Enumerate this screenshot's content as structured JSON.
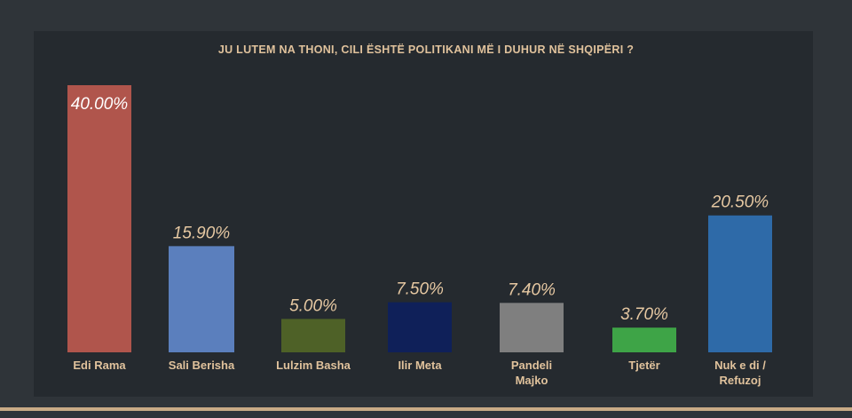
{
  "chart_data": {
    "type": "bar",
    "title": "JU LUTEM NA THONI, CILI ËSHTË POLITIKANI MË I DUHUR NË SHQIPËRI ?",
    "categories": [
      "Edi Rama",
      "Sali Berisha",
      "Lulzim Basha",
      "Ilir Meta",
      "Pandeli Majko",
      "Tjetër",
      "Nuk e di / Refuzoj"
    ],
    "category_lines": [
      [
        "Edi Rama"
      ],
      [
        "Sali Berisha"
      ],
      [
        "Lulzim Basha"
      ],
      [
        "Ilir Meta"
      ],
      [
        "Pandeli",
        "Majko"
      ],
      [
        "Tjetër"
      ],
      [
        "Nuk e di /",
        "Refuzoj"
      ]
    ],
    "values": [
      40.0,
      15.9,
      5.0,
      7.5,
      7.4,
      3.7,
      20.5
    ],
    "value_labels": [
      "40.00%",
      "15.90%",
      "5.00%",
      "7.50%",
      "7.40%",
      "3.70%",
      "20.50%"
    ],
    "colors": [
      "#b0554c",
      "#5b7fbd",
      "#4e6127",
      "#0f2059",
      "#7f7f7f",
      "#3ea447",
      "#2e6aa8"
    ],
    "xlabel": "",
    "ylabel": "",
    "ylim": [
      0,
      40
    ],
    "grid": false,
    "legend": "none"
  }
}
